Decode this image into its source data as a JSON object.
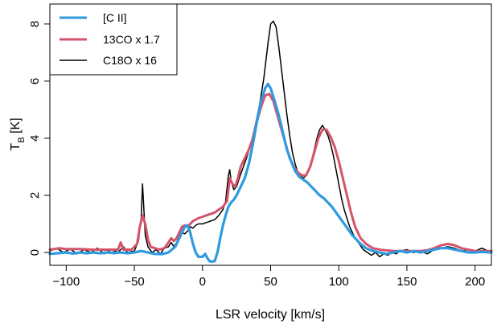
{
  "chart_data": {
    "type": "line",
    "xlabel": "LSR velocity [km/s]",
    "ylabel_main": "T",
    "ylabel_sub": "B",
    "ylabel_unit": " [K]",
    "xlim": [
      -112,
      212
    ],
    "ylim": [
      -0.45,
      8.7
    ],
    "xticks": [
      -100,
      -50,
      0,
      50,
      100,
      150,
      200
    ],
    "xtick_labels": [
      "−100",
      "−50",
      "0",
      "50",
      "100",
      "150",
      "200"
    ],
    "yticks": [
      0,
      2,
      4,
      6,
      8
    ],
    "ytick_labels": [
      "0",
      "2",
      "4",
      "6",
      "8"
    ],
    "legend": {
      "placement": "top-left"
    },
    "series": [
      {
        "name": "[C II]",
        "color": "#2e9be0",
        "points": [
          [
            -112,
            -0.05
          ],
          [
            -105,
            -0.02
          ],
          [
            -100,
            0.0
          ],
          [
            -95,
            -0.04
          ],
          [
            -90,
            0.0
          ],
          [
            -85,
            -0.03
          ],
          [
            -80,
            0.0
          ],
          [
            -75,
            -0.03
          ],
          [
            -70,
            0.0
          ],
          [
            -65,
            -0.02
          ],
          [
            -60,
            0.0
          ],
          [
            -55,
            -0.03
          ],
          [
            -50,
            0.0
          ],
          [
            -45,
            0.05
          ],
          [
            -40,
            0.0
          ],
          [
            -35,
            -0.05
          ],
          [
            -30,
            -0.06
          ],
          [
            -25,
            0.0
          ],
          [
            -20,
            0.2
          ],
          [
            -16,
            0.6
          ],
          [
            -13,
            0.9
          ],
          [
            -11,
            0.95
          ],
          [
            -9,
            0.7
          ],
          [
            -7,
            0.3
          ],
          [
            -5,
            0.0
          ],
          [
            -3,
            -0.15
          ],
          [
            0,
            -0.15
          ],
          [
            2,
            -0.05
          ],
          [
            3,
            -0.15
          ],
          [
            5,
            -0.3
          ],
          [
            7,
            -0.32
          ],
          [
            9,
            -0.3
          ],
          [
            11,
            0.0
          ],
          [
            13,
            0.5
          ],
          [
            15,
            0.95
          ],
          [
            17,
            1.3
          ],
          [
            19,
            1.6
          ],
          [
            21,
            1.75
          ],
          [
            23,
            1.85
          ],
          [
            25,
            2.0
          ],
          [
            28,
            2.3
          ],
          [
            31,
            2.6
          ],
          [
            34,
            3.1
          ],
          [
            37,
            3.8
          ],
          [
            40,
            4.6
          ],
          [
            43,
            5.3
          ],
          [
            46,
            5.75
          ],
          [
            48,
            5.9
          ],
          [
            50,
            5.75
          ],
          [
            53,
            5.3
          ],
          [
            56,
            4.8
          ],
          [
            59,
            4.2
          ],
          [
            62,
            3.6
          ],
          [
            65,
            3.2
          ],
          [
            68,
            2.85
          ],
          [
            71,
            2.65
          ],
          [
            74,
            2.55
          ],
          [
            77,
            2.45
          ],
          [
            80,
            2.3
          ],
          [
            83,
            2.15
          ],
          [
            86,
            2.0
          ],
          [
            89,
            1.9
          ],
          [
            92,
            1.75
          ],
          [
            95,
            1.6
          ],
          [
            98,
            1.4
          ],
          [
            101,
            1.2
          ],
          [
            104,
            1.0
          ],
          [
            107,
            0.8
          ],
          [
            110,
            0.6
          ],
          [
            113,
            0.45
          ],
          [
            116,
            0.3
          ],
          [
            120,
            0.15
          ],
          [
            125,
            0.05
          ],
          [
            130,
            0.0
          ],
          [
            135,
            -0.05
          ],
          [
            140,
            0.0
          ],
          [
            145,
            0.05
          ],
          [
            150,
            0.0
          ],
          [
            155,
            0.05
          ],
          [
            160,
            0.0
          ],
          [
            165,
            0.05
          ],
          [
            170,
            0.1
          ],
          [
            175,
            0.15
          ],
          [
            180,
            0.15
          ],
          [
            185,
            0.1
          ],
          [
            190,
            0.05
          ],
          [
            195,
            0.0
          ],
          [
            200,
            0.0
          ],
          [
            205,
            0.02
          ],
          [
            212,
            0.0
          ]
        ]
      },
      {
        "name": "13CO x 1.7",
        "color": "#d5536a",
        "points": [
          [
            -112,
            0.1
          ],
          [
            -105,
            0.15
          ],
          [
            -100,
            0.12
          ],
          [
            -90,
            0.12
          ],
          [
            -80,
            0.1
          ],
          [
            -70,
            0.1
          ],
          [
            -62,
            0.1
          ],
          [
            -60,
            0.35
          ],
          [
            -58,
            0.1
          ],
          [
            -52,
            0.1
          ],
          [
            -48,
            0.3
          ],
          [
            -46,
            0.9
          ],
          [
            -44,
            1.3
          ],
          [
            -42,
            1.0
          ],
          [
            -40,
            0.45
          ],
          [
            -38,
            0.2
          ],
          [
            -35,
            0.15
          ],
          [
            -32,
            0.1
          ],
          [
            -28,
            0.15
          ],
          [
            -25,
            0.35
          ],
          [
            -23,
            0.5
          ],
          [
            -21,
            0.4
          ],
          [
            -19,
            0.5
          ],
          [
            -17,
            0.7
          ],
          [
            -15,
            0.9
          ],
          [
            -13,
            0.95
          ],
          [
            -11,
            0.9
          ],
          [
            -9,
            1.0
          ],
          [
            -7,
            1.1
          ],
          [
            -5,
            1.15
          ],
          [
            -3,
            1.2
          ],
          [
            0,
            1.25
          ],
          [
            3,
            1.3
          ],
          [
            6,
            1.35
          ],
          [
            9,
            1.4
          ],
          [
            12,
            1.5
          ],
          [
            15,
            1.6
          ],
          [
            18,
            1.8
          ],
          [
            20,
            2.6
          ],
          [
            22,
            2.4
          ],
          [
            24,
            2.3
          ],
          [
            26,
            2.6
          ],
          [
            28,
            3.0
          ],
          [
            31,
            3.3
          ],
          [
            34,
            3.6
          ],
          [
            37,
            4.0
          ],
          [
            40,
            4.6
          ],
          [
            43,
            5.1
          ],
          [
            46,
            5.5
          ],
          [
            49,
            5.55
          ],
          [
            52,
            5.3
          ],
          [
            55,
            4.8
          ],
          [
            58,
            4.3
          ],
          [
            61,
            3.8
          ],
          [
            64,
            3.3
          ],
          [
            67,
            3.0
          ],
          [
            70,
            2.8
          ],
          [
            73,
            2.7
          ],
          [
            76,
            2.7
          ],
          [
            79,
            3.0
          ],
          [
            82,
            3.5
          ],
          [
            85,
            4.0
          ],
          [
            88,
            4.3
          ],
          [
            91,
            4.3
          ],
          [
            94,
            4.05
          ],
          [
            97,
            3.7
          ],
          [
            100,
            3.2
          ],
          [
            103,
            2.6
          ],
          [
            106,
            2.0
          ],
          [
            109,
            1.4
          ],
          [
            112,
            0.9
          ],
          [
            116,
            0.5
          ],
          [
            120,
            0.3
          ],
          [
            125,
            0.15
          ],
          [
            130,
            0.1
          ],
          [
            140,
            0.05
          ],
          [
            150,
            0.05
          ],
          [
            160,
            0.05
          ],
          [
            165,
            0.08
          ],
          [
            170,
            0.15
          ],
          [
            175,
            0.25
          ],
          [
            180,
            0.3
          ],
          [
            185,
            0.25
          ],
          [
            190,
            0.15
          ],
          [
            195,
            0.1
          ],
          [
            200,
            0.05
          ],
          [
            212,
            0.05
          ]
        ]
      },
      {
        "name": "C18O x 16",
        "color": "#000000",
        "points": [
          [
            -112,
            0.05
          ],
          [
            -107,
            0.15
          ],
          [
            -102,
            0.0
          ],
          [
            -97,
            0.12
          ],
          [
            -92,
            -0.05
          ],
          [
            -87,
            0.1
          ],
          [
            -82,
            0.0
          ],
          [
            -77,
            0.15
          ],
          [
            -72,
            -0.05
          ],
          [
            -67,
            0.1
          ],
          [
            -62,
            0.0
          ],
          [
            -58,
            0.2
          ],
          [
            -55,
            0.0
          ],
          [
            -50,
            0.05
          ],
          [
            -47,
            0.4
          ],
          [
            -45,
            1.2
          ],
          [
            -44,
            2.4
          ],
          [
            -43,
            1.5
          ],
          [
            -42,
            0.6
          ],
          [
            -40,
            0.2
          ],
          [
            -37,
            0.0
          ],
          [
            -34,
            0.1
          ],
          [
            -31,
            -0.05
          ],
          [
            -28,
            0.15
          ],
          [
            -25,
            0.2
          ],
          [
            -23,
            0.35
          ],
          [
            -21,
            0.2
          ],
          [
            -19,
            0.35
          ],
          [
            -17,
            0.6
          ],
          [
            -15,
            0.7
          ],
          [
            -13,
            0.65
          ],
          [
            -11,
            0.75
          ],
          [
            -9,
            0.9
          ],
          [
            -7,
            0.85
          ],
          [
            -5,
            0.95
          ],
          [
            -3,
            1.0
          ],
          [
            0,
            1.0
          ],
          [
            3,
            1.05
          ],
          [
            6,
            1.1
          ],
          [
            9,
            1.15
          ],
          [
            12,
            1.3
          ],
          [
            15,
            1.5
          ],
          [
            17,
            1.8
          ],
          [
            19,
            2.7
          ],
          [
            20,
            2.9
          ],
          [
            21,
            2.5
          ],
          [
            23,
            2.2
          ],
          [
            25,
            2.3
          ],
          [
            27,
            2.6
          ],
          [
            30,
            3.0
          ],
          [
            33,
            3.4
          ],
          [
            36,
            3.9
          ],
          [
            39,
            4.5
          ],
          [
            42,
            5.2
          ],
          [
            45,
            6.1
          ],
          [
            48,
            7.3
          ],
          [
            50,
            8.0
          ],
          [
            52,
            8.1
          ],
          [
            54,
            7.9
          ],
          [
            56,
            7.2
          ],
          [
            58,
            6.4
          ],
          [
            60,
            5.6
          ],
          [
            62,
            4.8
          ],
          [
            64,
            4.1
          ],
          [
            66,
            3.5
          ],
          [
            68,
            3.1
          ],
          [
            70,
            2.8
          ],
          [
            72,
            2.7
          ],
          [
            74,
            2.6
          ],
          [
            76,
            2.7
          ],
          [
            78,
            2.9
          ],
          [
            80,
            3.2
          ],
          [
            82,
            3.6
          ],
          [
            84,
            4.0
          ],
          [
            86,
            4.3
          ],
          [
            88,
            4.45
          ],
          [
            90,
            4.3
          ],
          [
            92,
            4.1
          ],
          [
            94,
            3.8
          ],
          [
            96,
            3.4
          ],
          [
            98,
            2.9
          ],
          [
            100,
            2.4
          ],
          [
            102,
            1.9
          ],
          [
            104,
            1.5
          ],
          [
            106,
            1.2
          ],
          [
            108,
            0.9
          ],
          [
            110,
            0.7
          ],
          [
            112,
            0.5
          ],
          [
            115,
            0.3
          ],
          [
            118,
            0.1
          ],
          [
            121,
            0.0
          ],
          [
            124,
            -0.1
          ],
          [
            127,
            0.0
          ],
          [
            130,
            -0.15
          ],
          [
            133,
            -0.05
          ],
          [
            136,
            -0.1
          ],
          [
            139,
            0.0
          ],
          [
            142,
            -0.05
          ],
          [
            145,
            0.05
          ],
          [
            150,
            0.1
          ],
          [
            155,
            0.0
          ],
          [
            160,
            0.05
          ],
          [
            165,
            -0.05
          ],
          [
            170,
            0.1
          ],
          [
            175,
            0.15
          ],
          [
            180,
            0.2
          ],
          [
            185,
            0.15
          ],
          [
            190,
            0.05
          ],
          [
            195,
            0.1
          ],
          [
            200,
            0.05
          ],
          [
            205,
            0.15
          ],
          [
            212,
            0.0
          ]
        ]
      }
    ]
  }
}
